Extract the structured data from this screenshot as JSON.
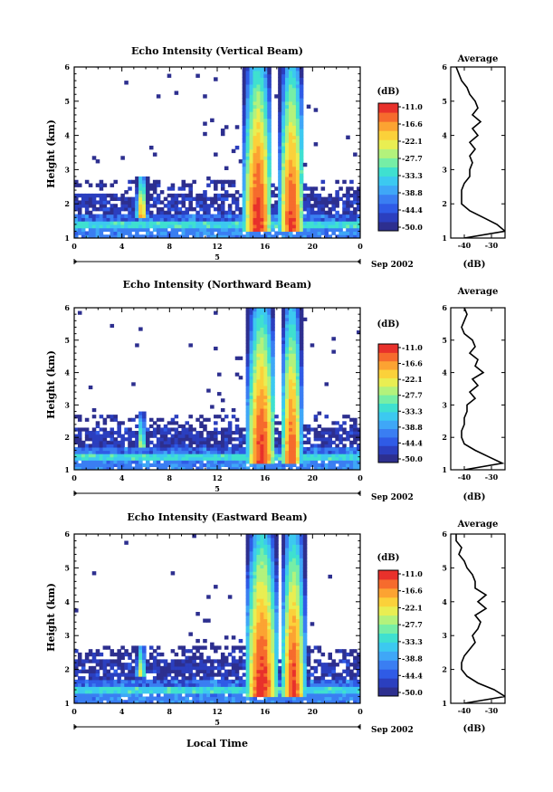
{
  "figure": {
    "y_label": "Height (km)",
    "x_label": "Local Time",
    "x_ticks": [
      "0",
      "4",
      "8",
      "12",
      "16",
      "20",
      "0"
    ],
    "day_label": "5",
    "date_label": "Sep 2002",
    "colorbar_unit": "(dB)",
    "colorbar_ticks": [
      "-11.0",
      "-16.6",
      "-22.1",
      "-27.7",
      "-33.3",
      "-38.8",
      "-44.4",
      "-50.0"
    ],
    "average_title": "Average",
    "average_xlabel": "(dB)",
    "average_x_ticks": [
      "-40",
      "-30"
    ],
    "y_ticks": [
      "1",
      "2",
      "3",
      "4",
      "5",
      "6"
    ]
  },
  "chart_data": [
    {
      "type": "heatmap",
      "title": "Echo Intensity (Vertical Beam)",
      "xlabel": "",
      "ylabel": "Height (km)",
      "xlim": [
        0,
        24
      ],
      "ylim": [
        1,
        6
      ],
      "color_range_db": [
        -50.0,
        -11.0
      ],
      "features": [
        {
          "time_range": [
            14.0,
            16.5
          ],
          "height_range": [
            1.2,
            6.0
          ],
          "peak_db": -11.0
        },
        {
          "time_range": [
            17.0,
            19.2
          ],
          "height_range": [
            1.2,
            6.0
          ],
          "peak_db": -12.0
        },
        {
          "time_range": [
            5.0,
            6.0
          ],
          "height_range": [
            1.6,
            2.8
          ],
          "peak_db": -14.0
        }
      ],
      "average_profile": {
        "xlabel": "(dB)",
        "x_ticks": [
          -40,
          -30
        ],
        "height_km": [
          1.0,
          1.2,
          1.4,
          1.6,
          1.8,
          2.0,
          2.2,
          2.4,
          2.6,
          2.8,
          3.0,
          3.2,
          3.4,
          3.6,
          3.8,
          4.0,
          4.2,
          4.4,
          4.6,
          4.8,
          5.0,
          5.2,
          5.4,
          5.6,
          5.8,
          6.0
        ],
        "db": [
          -40,
          -25,
          -28,
          -33,
          -38,
          -41,
          -41,
          -41,
          -40,
          -38,
          -38,
          -37,
          -38,
          -36,
          -38,
          -35,
          -37,
          -34,
          -37,
          -35,
          -36,
          -38,
          -39,
          -41,
          -42,
          -43
        ]
      }
    },
    {
      "type": "heatmap",
      "title": "Echo Intensity (Northward Beam)",
      "xlabel": "",
      "ylabel": "Height (km)",
      "xlim": [
        0,
        24
      ],
      "ylim": [
        1,
        6
      ],
      "color_range_db": [
        -50.0,
        -11.0
      ],
      "features": [
        {
          "time_range": [
            14.3,
            16.8
          ],
          "height_range": [
            1.2,
            6.0
          ],
          "peak_db": -11.5
        },
        {
          "time_range": [
            17.2,
            19.0
          ],
          "height_range": [
            1.2,
            6.0
          ],
          "peak_db": -13.0
        },
        {
          "time_range": [
            5.1,
            5.9
          ],
          "height_range": [
            1.7,
            2.8
          ],
          "peak_db": -20.0
        }
      ],
      "average_profile": {
        "xlabel": "(dB)",
        "x_ticks": [
          -40,
          -30
        ],
        "height_km": [
          1.0,
          1.2,
          1.4,
          1.6,
          1.8,
          2.0,
          2.2,
          2.4,
          2.6,
          2.8,
          3.0,
          3.2,
          3.4,
          3.6,
          3.8,
          4.0,
          4.2,
          4.4,
          4.6,
          4.8,
          5.0,
          5.2,
          5.4,
          5.6,
          5.8,
          6.0
        ],
        "db": [
          -40,
          -26,
          -31,
          -36,
          -40,
          -41,
          -41,
          -40,
          -40,
          -39,
          -39,
          -36,
          -38,
          -35,
          -37,
          -33,
          -36,
          -35,
          -38,
          -36,
          -37,
          -40,
          -41,
          -40,
          -39,
          -40
        ]
      }
    },
    {
      "type": "heatmap",
      "title": "Echo Intensity (Eastward Beam)",
      "xlabel": "Local Time",
      "ylabel": "Height (km)",
      "xlim": [
        0,
        24
      ],
      "ylim": [
        1,
        6
      ],
      "color_range_db": [
        -50.0,
        -11.0
      ],
      "features": [
        {
          "time_range": [
            14.2,
            17.0
          ],
          "height_range": [
            1.2,
            6.0
          ],
          "peak_db": -11.0
        },
        {
          "time_range": [
            17.2,
            19.3
          ],
          "height_range": [
            1.2,
            6.0
          ],
          "peak_db": -12.0
        },
        {
          "time_range": [
            5.0,
            5.9
          ],
          "height_range": [
            1.8,
            2.7
          ],
          "peak_db": -16.0
        }
      ],
      "average_profile": {
        "xlabel": "(dB)",
        "x_ticks": [
          -40,
          -30
        ],
        "height_km": [
          1.0,
          1.2,
          1.4,
          1.6,
          1.8,
          2.0,
          2.2,
          2.4,
          2.6,
          2.8,
          3.0,
          3.2,
          3.4,
          3.6,
          3.8,
          4.0,
          4.2,
          4.4,
          4.6,
          4.8,
          5.0,
          5.2,
          5.4,
          5.6,
          5.8,
          6.0
        ],
        "db": [
          -40,
          -25,
          -29,
          -35,
          -39,
          -41,
          -41,
          -40,
          -38,
          -36,
          -37,
          -35,
          -34,
          -36,
          -32,
          -35,
          -32,
          -36,
          -36,
          -37,
          -39,
          -40,
          -42,
          -41,
          -43,
          -43
        ]
      }
    }
  ]
}
